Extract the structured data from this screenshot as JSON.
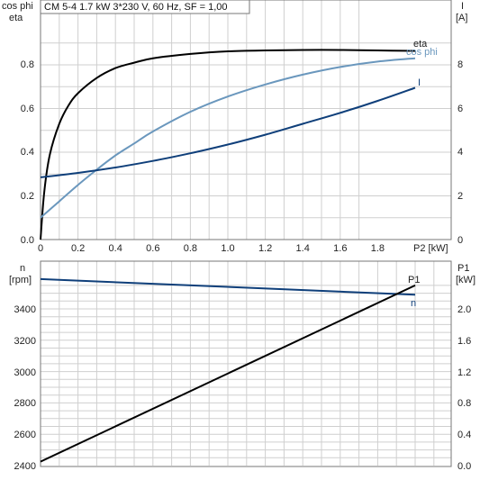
{
  "chart_data": [
    {
      "type": "line",
      "title": "CM 5-4    1.7 kW    3*230 V, 60 Hz, SF = 1,00",
      "xlabel": "P2 [kW]",
      "x_ticks": [
        "0",
        "0.2",
        "0.4",
        "0.6",
        "0.8",
        "1.0",
        "1.2",
        "1.4",
        "1.6",
        "1.8"
      ],
      "xlim": [
        0,
        2.0
      ],
      "left_axis": {
        "label_lines": [
          "cos phi",
          "eta"
        ],
        "ylim": [
          0,
          0.9
        ],
        "ticks": [
          "0.0",
          "0.2",
          "0.4",
          "0.6",
          "0.8"
        ]
      },
      "right_axis": {
        "label_lines": [
          "I",
          "[A]"
        ],
        "ylim": [
          0,
          9.0
        ],
        "ticks": [
          "0",
          "2",
          "4",
          "6",
          "8"
        ]
      },
      "grid": true,
      "series": [
        {
          "name": "eta",
          "axis": "left",
          "color": "#000000",
          "x": [
            0,
            0.02,
            0.05,
            0.1,
            0.15,
            0.2,
            0.3,
            0.4,
            0.5,
            0.6,
            0.8,
            1.0,
            1.2,
            1.4,
            1.6,
            1.8,
            2.0
          ],
          "y": [
            0.0,
            0.22,
            0.39,
            0.53,
            0.615,
            0.67,
            0.74,
            0.785,
            0.81,
            0.83,
            0.85,
            0.862,
            0.866,
            0.868,
            0.868,
            0.866,
            0.864
          ]
        },
        {
          "name": "cos phi",
          "axis": "left",
          "color": "#6a97bd",
          "x": [
            0,
            0.1,
            0.2,
            0.3,
            0.4,
            0.5,
            0.6,
            0.8,
            1.0,
            1.2,
            1.4,
            1.6,
            1.8,
            2.0
          ],
          "y": [
            0.1,
            0.175,
            0.25,
            0.32,
            0.385,
            0.44,
            0.495,
            0.585,
            0.655,
            0.71,
            0.755,
            0.79,
            0.815,
            0.83
          ]
        },
        {
          "name": "I",
          "axis": "right",
          "color": "#0f3f7a",
          "x": [
            0,
            0.2,
            0.4,
            0.6,
            0.8,
            1.0,
            1.2,
            1.4,
            1.6,
            1.8,
            2.0
          ],
          "y": [
            2.85,
            3.05,
            3.3,
            3.6,
            3.95,
            4.35,
            4.8,
            5.3,
            5.8,
            6.35,
            6.95
          ]
        }
      ]
    },
    {
      "type": "line",
      "xlim": [
        0,
        2.0
      ],
      "left_axis": {
        "label_lines": [
          "n",
          "[rpm]"
        ],
        "ylim": [
          2400,
          3550
        ],
        "ticks": [
          "2400",
          "2600",
          "2800",
          "3000",
          "3200",
          "3400"
        ]
      },
      "right_axis": {
        "label_lines": [
          "P1",
          "[kW]"
        ],
        "ylim": [
          0.0,
          2.3
        ],
        "ticks": [
          "0.0",
          "0.4",
          "0.8",
          "1.2",
          "1.6",
          "2.0"
        ]
      },
      "grid": true,
      "series": [
        {
          "name": "n",
          "axis": "left",
          "color": "#0f3f7a",
          "x": [
            0,
            2.0
          ],
          "y": [
            3590,
            3490
          ]
        },
        {
          "name": "P1",
          "axis": "right",
          "color": "#000000",
          "x": [
            0,
            2.0
          ],
          "y": [
            0.05,
            2.3
          ]
        }
      ]
    }
  ]
}
